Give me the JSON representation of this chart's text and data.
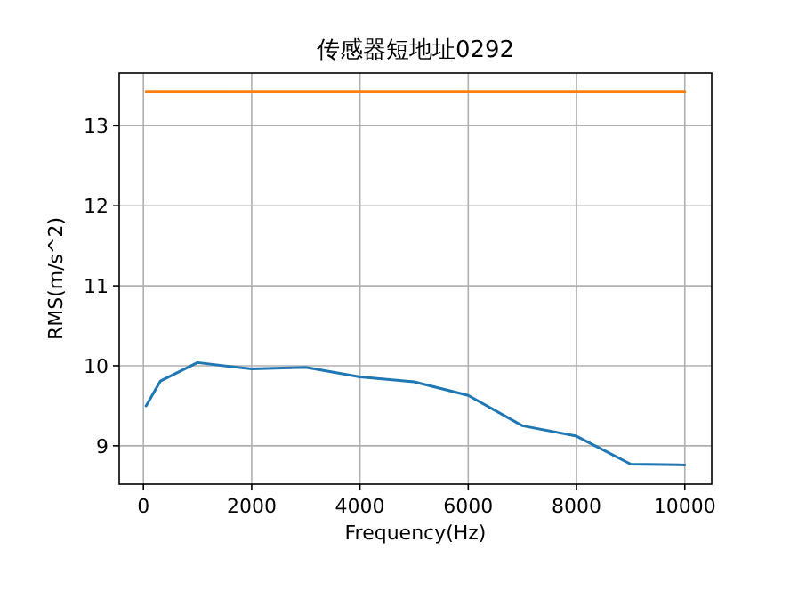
{
  "chart_data": {
    "type": "line",
    "title": "传感器短地址0292",
    "xlabel": "Frequency(Hz)",
    "ylabel": "RMS(m/s^2)",
    "xlim": [
      -447,
      10497
    ],
    "ylim": [
      8.52,
      13.66
    ],
    "xticks": [
      0,
      2000,
      4000,
      6000,
      8000,
      10000
    ],
    "yticks": [
      9,
      10,
      11,
      12,
      13
    ],
    "grid": true,
    "series": [
      {
        "color": "#1f77b4",
        "x": [
          50,
          315,
          1000,
          2000,
          3000,
          4000,
          5000,
          6000,
          7000,
          8000,
          9000,
          10000
        ],
        "values": [
          9.5,
          9.81,
          10.04,
          9.96,
          9.98,
          9.86,
          9.8,
          9.63,
          9.25,
          9.12,
          8.77,
          8.76
        ]
      },
      {
        "color": "#ff7f0e",
        "x": [
          50,
          10000
        ],
        "values": [
          13.43,
          13.43
        ]
      }
    ]
  }
}
